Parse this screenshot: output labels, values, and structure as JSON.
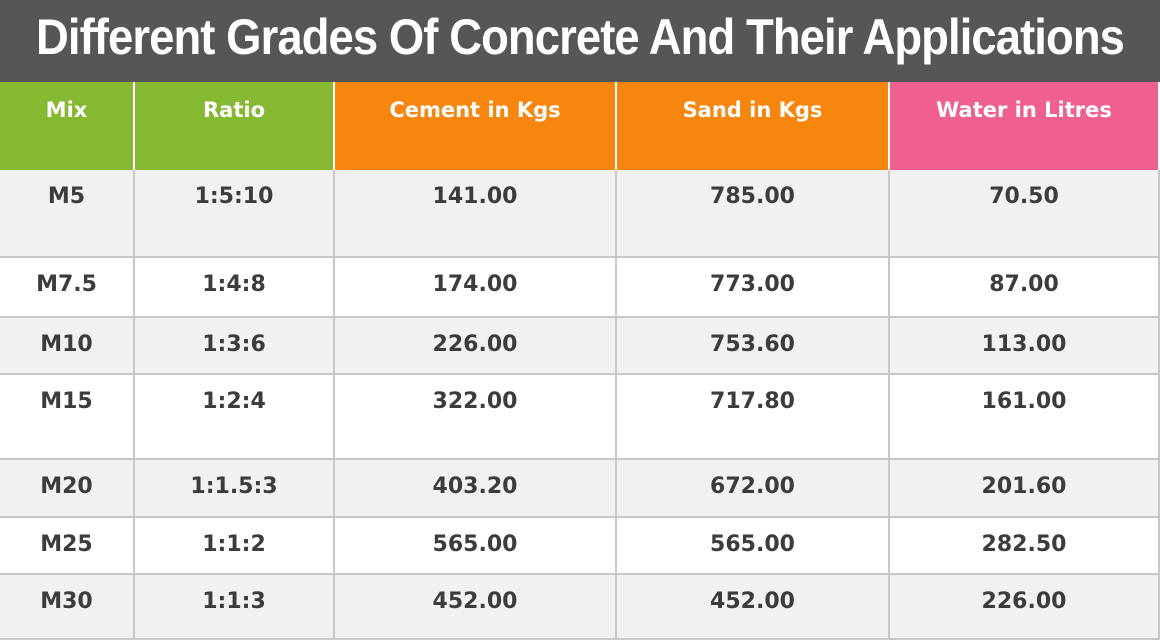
{
  "header": {
    "title": "Different Grades Of Concrete And Their Applications"
  },
  "table": {
    "columns": [
      "Mix",
      "Ratio",
      "Cement in Kgs",
      "Sand in Kgs",
      "Water in Litres"
    ],
    "rows": [
      [
        "M5",
        "1:5:10",
        "141.00",
        "785.00",
        "70.50"
      ],
      [
        "M7.5",
        "1:4:8",
        "174.00",
        "773.00",
        "87.00"
      ],
      [
        "M10",
        "1:3:6",
        "226.00",
        "753.60",
        "113.00"
      ],
      [
        "M15",
        "1:2:4",
        "322.00",
        "717.80",
        "161.00"
      ],
      [
        "M20",
        "1:1.5:3",
        "403.20",
        "672.00",
        "201.60"
      ],
      [
        "M25",
        "1:1:2",
        "565.00",
        "565.00",
        "282.50"
      ],
      [
        "M30",
        "1:1:3",
        "452.00",
        "452.00",
        "226.00"
      ]
    ]
  }
}
